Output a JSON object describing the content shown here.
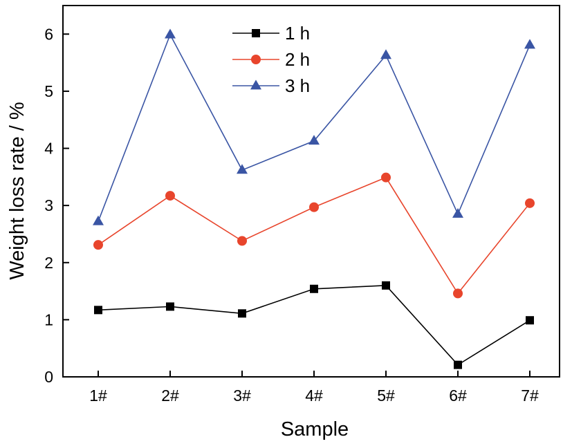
{
  "chart_data": {
    "type": "line",
    "categories": [
      "1#",
      "2#",
      "3#",
      "4#",
      "5#",
      "6#",
      "7#"
    ],
    "series": [
      {
        "name": "1 h",
        "values": [
          1.17,
          1.23,
          1.11,
          1.54,
          1.6,
          0.21,
          0.99
        ],
        "color": "#000000",
        "marker": "square"
      },
      {
        "name": "2 h",
        "values": [
          2.31,
          3.17,
          2.38,
          2.97,
          3.49,
          1.46,
          3.04
        ],
        "color": "#e8452c",
        "marker": "circle"
      },
      {
        "name": "3 h",
        "values": [
          2.72,
          5.99,
          3.62,
          4.13,
          5.63,
          2.85,
          5.81
        ],
        "color": "#3a55a4",
        "marker": "triangle"
      }
    ],
    "xlabel": "Sample",
    "ylabel": "Weight loss rate / %",
    "ylim": [
      0,
      6.5
    ],
    "yticks": [
      0,
      1,
      2,
      3,
      4,
      5,
      6
    ],
    "grid": false,
    "legend_position": "top-center"
  }
}
